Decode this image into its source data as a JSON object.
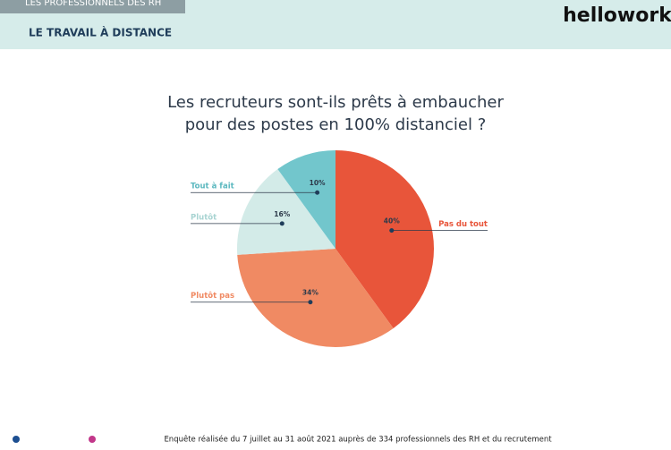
{
  "header": {
    "top_label": "LES PROFESSIONNELS DES RH",
    "section": "LE TRAVAIL À DISTANCE",
    "logo": "hellowork"
  },
  "chart_data": {
    "type": "pie",
    "title": [
      "Les recruteurs sont-ils prêts à embaucher",
      "pour des postes en 100% distanciel ?"
    ],
    "categories": [
      "Pas du tout",
      "Plutôt pas",
      "Plutôt",
      "Tout à fait"
    ],
    "values": [
      40,
      34,
      16,
      10
    ],
    "value_labels": [
      "40%",
      "34%",
      "16%",
      "10%"
    ],
    "colors": [
      "#e8553a",
      "#f08a63",
      "#d3ebe8",
      "#72c6cc"
    ],
    "label_colors": [
      "#e8553a",
      "#f08a63",
      "#a8d4d2",
      "#5bb8bf"
    ]
  },
  "footer": {
    "note": "Enquête réalisée du 7 juillet au 31 août 2021 auprès de 334 professionnels des RH et du recrutement"
  }
}
